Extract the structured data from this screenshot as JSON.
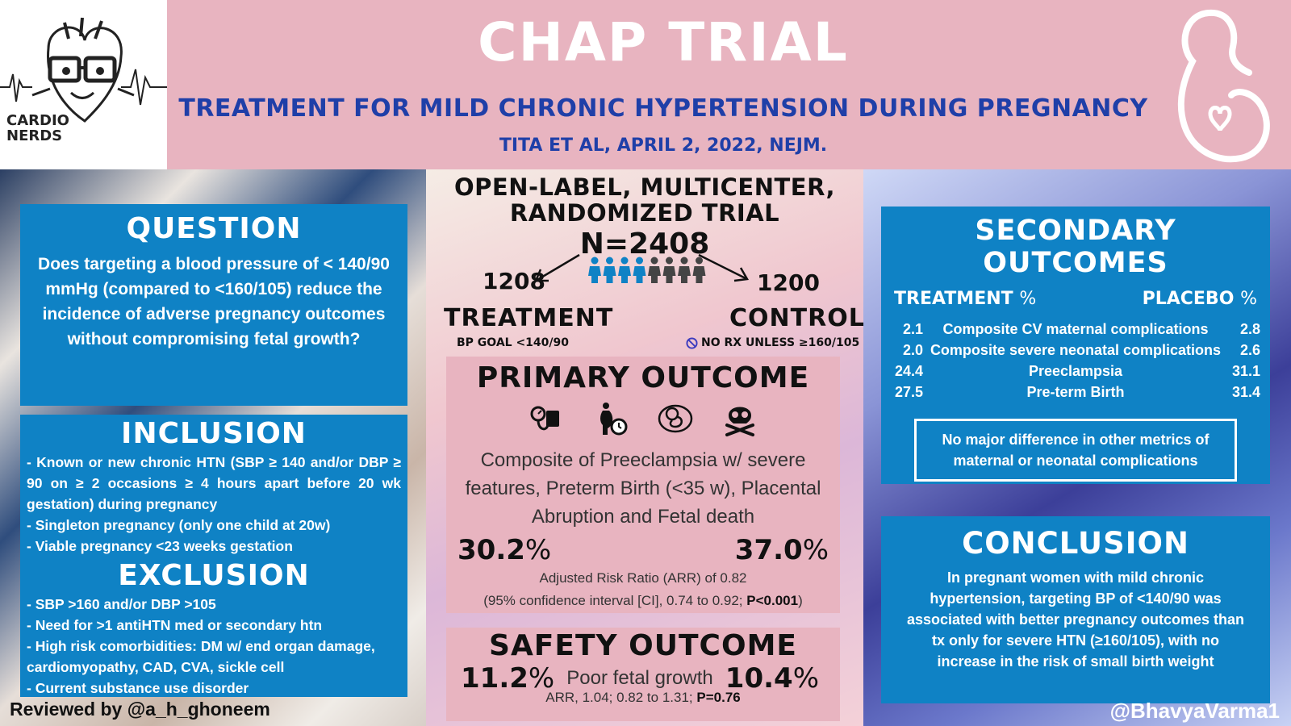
{
  "header": {
    "logo_text_line1": "CARDIO",
    "logo_text_line2": "NERDS",
    "title": "CHAP TRIAL",
    "subtitle": "TREATMENT FOR MILD CHRONIC HYPERTENSION DURING PREGNANCY",
    "citation": "TITA ET AL, APRIL 2, 2022, NEJM."
  },
  "question": {
    "heading": "QUESTION",
    "text": "Does targeting a blood pressure of < 140/90 mmHg (compared to <160/105) reduce the incidence of adverse pregnancy outcomes without compromising fetal growth?"
  },
  "inclusion": {
    "heading": "INCLUSION",
    "items": [
      "- Known or new chronic HTN (SBP ≥ 140 and/or DBP ≥ 90 on ≥ 2 occasions ≥ 4 hours apart before 20 wk gestation) during pregnancy",
      "- Singleton pregnancy (only one child at 20w)",
      "- Viable pregnancy <23 weeks gestation"
    ]
  },
  "exclusion": {
    "heading": "EXCLUSION",
    "items": [
      "- SBP >160 and/or DBP >105",
      "- Need for >1 antiHTN med or secondary htn",
      "- High risk comorbidities: DM w/ end organ damage, cardiomyopathy, CAD, CVA, sickle cell",
      "- Current substance use disorder"
    ]
  },
  "design": {
    "line1": "OPEN-LABEL, MULTICENTER,",
    "line2": "RANDOMIZED TRIAL",
    "n": "N=2408",
    "treatment_n": "1208",
    "treatment_label": "TREATMENT",
    "treatment_goal": "BP GOAL <140/90",
    "control_n": "1200",
    "control_label": "CONTROL",
    "control_goal": "NO RX UNLESS ≥160/105"
  },
  "primary": {
    "heading": "PRIMARY OUTCOME",
    "description": "Composite of Preeclampsia w/ severe features, Preterm Birth (<35 w), Placental Abruption and Fetal death",
    "treatment_value": "30.2",
    "control_value": "37.0",
    "pct": "%",
    "arr_line1": "Adjusted Risk Ratio (ARR) of 0.82",
    "arr_line2": "(95% confidence interval [CI], 0.74 to 0.92; ",
    "arr_p": "P<0.001",
    "arr_close": ")",
    "icons": [
      "blood-pressure-icon",
      "pregnant-clock-icon",
      "fetus-icon",
      "skull-crossbones-icon"
    ]
  },
  "safety": {
    "heading": "SAFETY OUTCOME",
    "treatment_value": "11.2",
    "control_value": "10.4",
    "pct": "%",
    "measure": "Poor fetal growth",
    "arr_text": "ARR, 1.04; 0.82 to 1.31; ",
    "arr_p": "P=0.76"
  },
  "secondary": {
    "heading": "SECONDARY OUTCOMES",
    "col_treatment": "TREATMENT",
    "col_placebo": "PLACEBO",
    "pct": "%",
    "rows": [
      {
        "t": "2.1",
        "name": "Composite CV maternal complications",
        "p": "2.8"
      },
      {
        "t": "2.0",
        "name": "Composite severe neonatal complications",
        "p": "2.6"
      },
      {
        "t": "24.4",
        "name": "Preeclampsia",
        "p": "31.1"
      },
      {
        "t": "27.5",
        "name": "Pre-term Birth",
        "p": "31.4"
      }
    ],
    "note": "No major difference in other metrics of maternal or neonatal complications"
  },
  "conclusion": {
    "heading": "CONCLUSION",
    "text": "In pregnant women with mild chronic hypertension, targeting BP of <140/90 was associated with better pregnancy outcomes than tx only for severe HTN (≥160/105), with no increase in the risk of small birth weight"
  },
  "footer": {
    "reviewed": "Reviewed by @a_h_ghoneem",
    "handle": "@BhavyaVarma1"
  },
  "colors": {
    "header_pink": "#e8b4c0",
    "panel_blue": "#0f82c5",
    "subtitle_blue": "#1f3fa8"
  }
}
